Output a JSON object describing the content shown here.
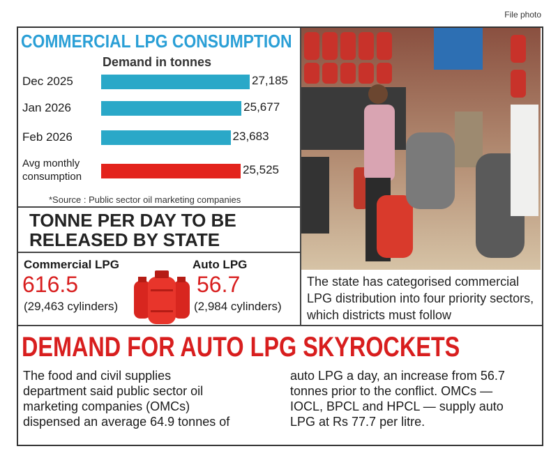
{
  "credit": "File photo",
  "chart_data": {
    "type": "bar",
    "orientation": "horizontal",
    "title": "COMMERCIAL LPG CONSUMPTION",
    "subtitle": "Demand in tonnes",
    "categories": [
      "Dec 2025",
      "Jan 2026",
      "Feb 2026",
      "Avg monthly consumption"
    ],
    "values": [
      27185,
      25677,
      23683,
      25525
    ],
    "value_labels": [
      "27,185",
      "25,677",
      "23,683",
      "25,525"
    ],
    "colors": [
      "#2aa8c8",
      "#2aa8c8",
      "#2aa8c8",
      "#e3231c"
    ],
    "source": "*Source : Public sector oil marketing companies"
  },
  "release": {
    "title": "TONNE PER DAY TO BE RELEASED BY STATE",
    "items": [
      {
        "label": "Commercial LPG",
        "value": 616.5,
        "note": "(29,463 cylinders)"
      },
      {
        "label": "Auto LPG",
        "value": 56.7,
        "note": "(2,984 cylinders)"
      }
    ]
  },
  "caption": "The state has categorised commercial LPG distribution into four priority sectors, which districts must follow",
  "story": {
    "headline": "DEMAND FOR AUTO LPG SKYROCKETS",
    "columns": [
      [
        "The food and civil supplies",
        "department said public sector oil",
        "marketing companies (OMCs)",
        "dispensed an average 64.9 tonnes of"
      ],
      [
        "auto LPG a day, an increase from 56.7",
        "tonnes prior to the conflict. OMCs —",
        "IOCL, BPCL and HPCL — supply auto",
        "LPG at Rs 77.7 per litre."
      ]
    ]
  }
}
